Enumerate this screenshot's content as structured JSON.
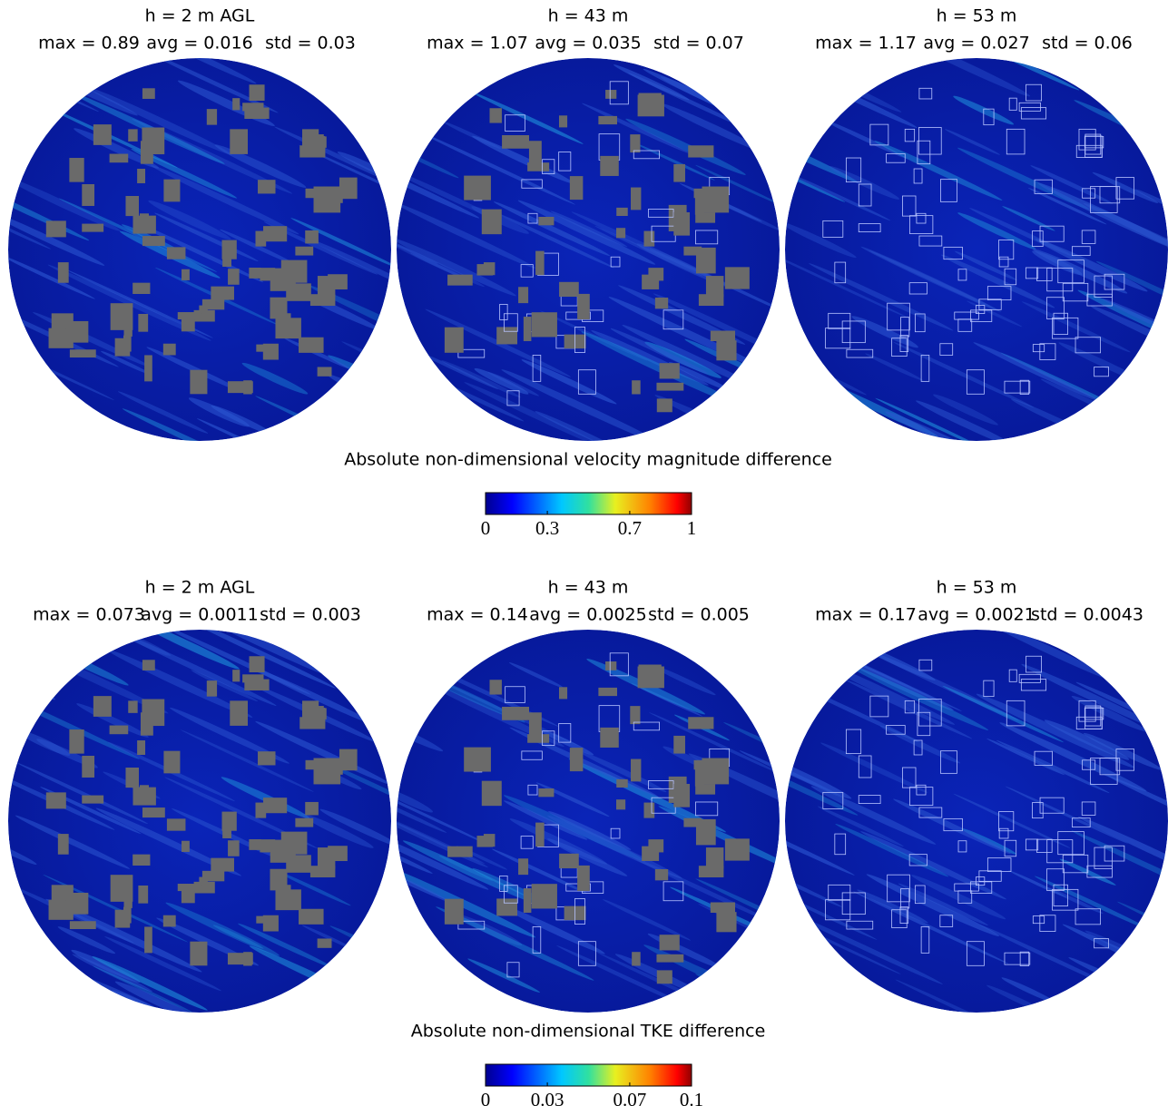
{
  "rows": [
    {
      "panels": [
        {
          "title": "h = 2 m AGL",
          "stats": [
            "max = 0.89",
            "avg = 0.016",
            "std = 0.03"
          ]
        },
        {
          "title": "h = 43 m",
          "stats": [
            "max = 1.07",
            "avg = 0.035",
            "std = 0.07"
          ]
        },
        {
          "title": "h = 53 m",
          "stats": [
            "max = 1.17",
            "avg = 0.027",
            "std = 0.06"
          ]
        }
      ],
      "caption": "Absolute non-dimensional velocity magnitude difference",
      "colorbar": {
        "lim": [
          0,
          1
        ],
        "ticks": [
          0,
          0.3,
          0.7,
          1
        ]
      }
    },
    {
      "panels": [
        {
          "title": "h = 2 m AGL",
          "stats": [
            "max = 0.073",
            "avg = 0.0011",
            "std = 0.003"
          ]
        },
        {
          "title": "h = 43 m",
          "stats": [
            "max = 0.14",
            "avg = 0.0025",
            "std = 0.005"
          ]
        },
        {
          "title": "h = 53 m",
          "stats": [
            "max = 0.17",
            "avg = 0.0021",
            "std = 0.0043"
          ]
        }
      ],
      "caption": "Absolute non-dimensional TKE difference",
      "colorbar": {
        "lim": [
          0,
          0.1
        ],
        "ticks": [
          0,
          0.03,
          0.07,
          0.1
        ]
      }
    }
  ]
}
